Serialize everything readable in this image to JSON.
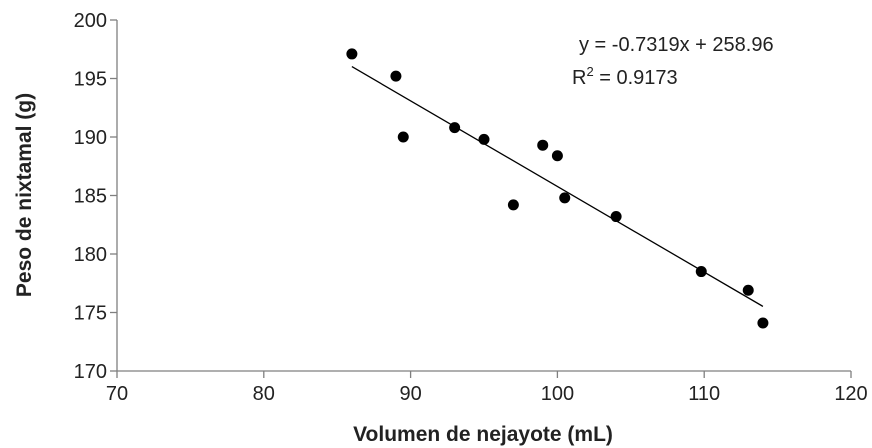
{
  "chart_data": {
    "type": "scatter",
    "xlabel": "Volumen de nejayote (mL)",
    "ylabel": "Peso de nixtamal (g)",
    "xlim": [
      70,
      120
    ],
    "ylim": [
      170,
      200
    ],
    "xticks": [
      70,
      80,
      90,
      100,
      110,
      120
    ],
    "yticks": [
      170,
      175,
      180,
      185,
      190,
      195,
      200
    ],
    "grid": false,
    "point_color": "#000000",
    "points": [
      {
        "x": 86.0,
        "y": 197.1
      },
      {
        "x": 89.0,
        "y": 195.2
      },
      {
        "x": 89.5,
        "y": 190.0
      },
      {
        "x": 93.0,
        "y": 190.8
      },
      {
        "x": 95.0,
        "y": 189.8
      },
      {
        "x": 97.0,
        "y": 184.2
      },
      {
        "x": 99.0,
        "y": 189.3
      },
      {
        "x": 100.0,
        "y": 188.4
      },
      {
        "x": 100.5,
        "y": 184.8
      },
      {
        "x": 104.0,
        "y": 183.2
      },
      {
        "x": 109.8,
        "y": 178.5
      },
      {
        "x": 113.0,
        "y": 176.9
      },
      {
        "x": 114.0,
        "y": 174.1
      }
    ],
    "trendline": {
      "slope": -0.7319,
      "intercept": 258.96,
      "x_range": [
        86,
        114
      ]
    },
    "equation": "y = -0.7319x + 258.96",
    "r2_prefix": "R",
    "r2_sup": "2",
    "r2_value": " = 0.9173"
  }
}
